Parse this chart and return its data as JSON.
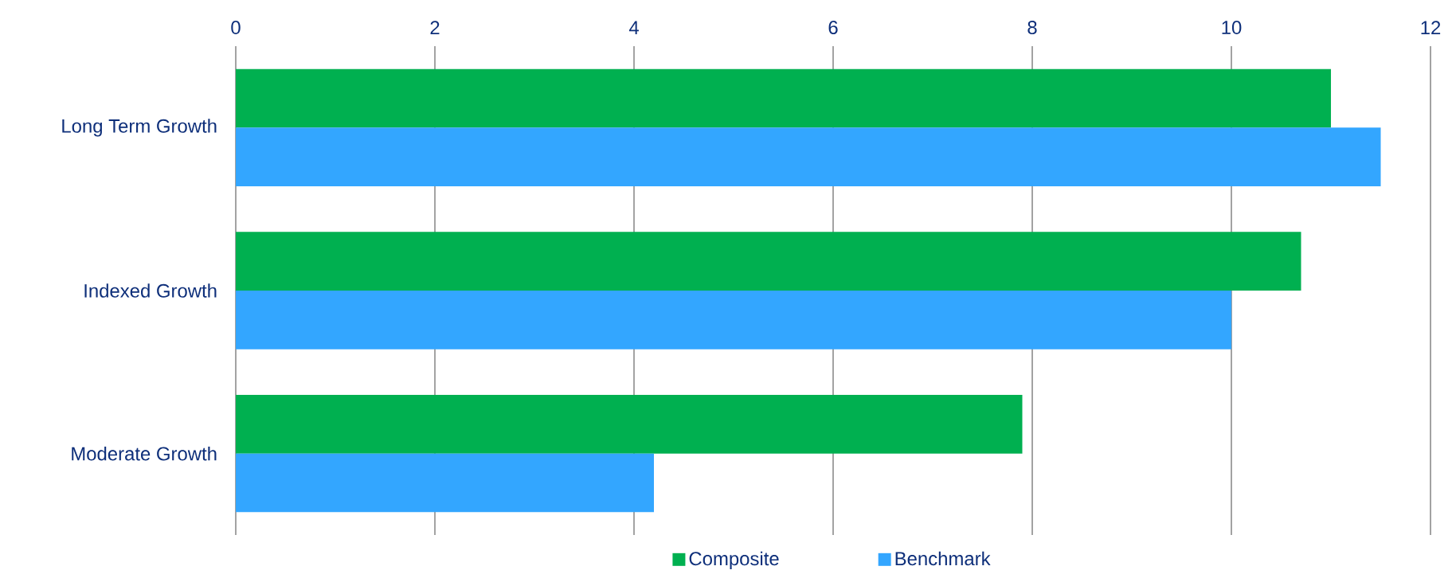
{
  "chart_data": {
    "type": "bar",
    "orientation": "horizontal",
    "categories": [
      "Long Term Growth",
      "Indexed Growth",
      "Moderate Growth"
    ],
    "series": [
      {
        "name": "Composite",
        "color": "#00b050",
        "values": [
          11.0,
          10.7,
          7.9
        ]
      },
      {
        "name": "Benchmark",
        "color": "#33a6ff",
        "values": [
          11.5,
          10.0,
          4.2
        ]
      }
    ],
    "xlim": [
      0,
      12
    ],
    "xticks": [
      0,
      2,
      4,
      6,
      8,
      10,
      12
    ],
    "grid": "x",
    "legend": "bottom"
  }
}
